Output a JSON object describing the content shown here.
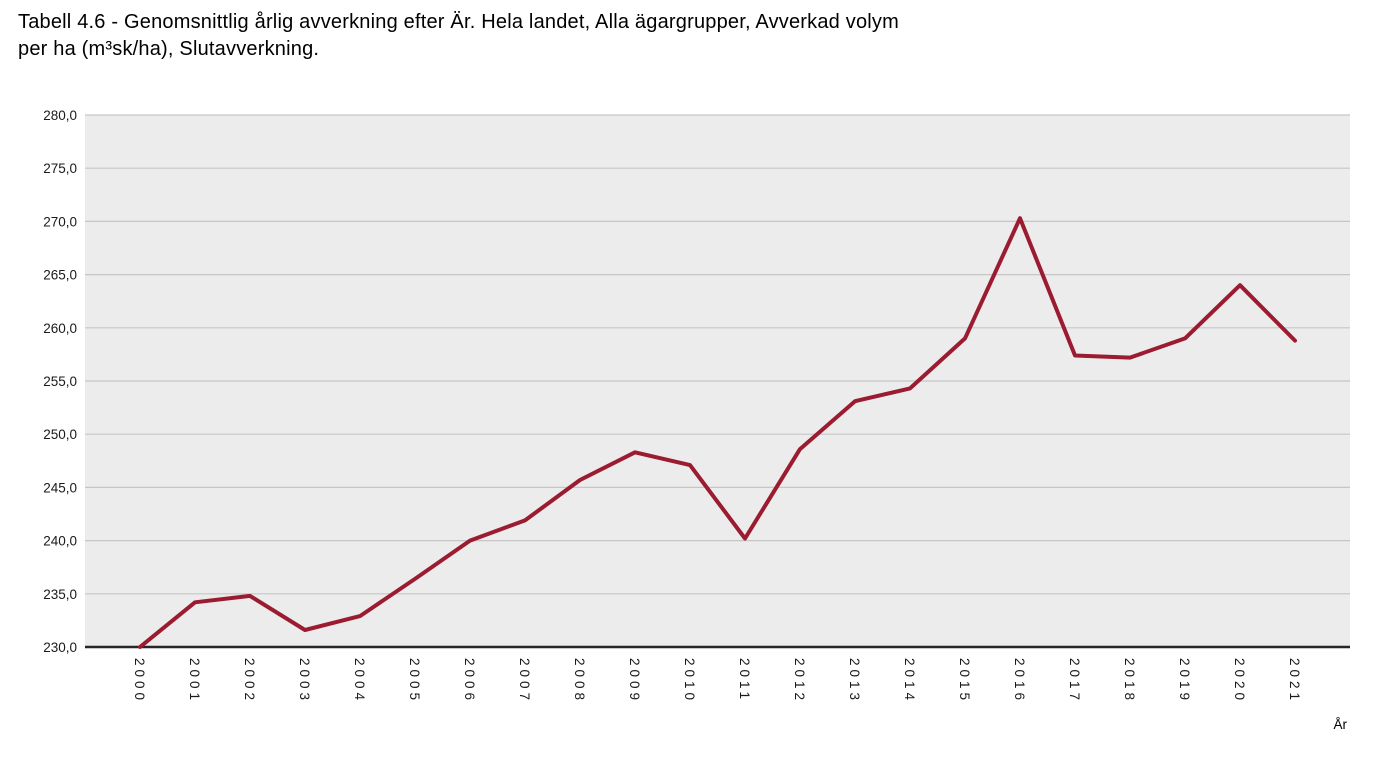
{
  "title": {
    "text": "Tabell 4.6 - Genomsnittlig årlig avverkning efter Är. Hela landet, Alla ägargrupper, Avverkad volym per ha (m³sk/ha), Slutavverkning.",
    "lines": [
      "Tabell 4.6 - Genomsnittlig årlig avverkning efter Är. Hela landet, Alla ägargrupper, Avverkad volym",
      "per ha (m³sk/ha), Slutavverkning."
    ]
  },
  "chart_data": {
    "type": "line",
    "title": "Tabell 4.6 - Genomsnittlig årlig avverkning efter Är. Hela landet, Alla ägargrupper, Avverkad volym per ha (m³sk/ha), Slutavverkning.",
    "x": [
      2000,
      2001,
      2002,
      2003,
      2004,
      2005,
      2006,
      2007,
      2008,
      2009,
      2010,
      2011,
      2012,
      2013,
      2014,
      2015,
      2016,
      2017,
      2018,
      2019,
      2020,
      2021
    ],
    "series": [
      {
        "name": "Avverkad volym per ha (m³sk/ha), Slutavverkning",
        "values": [
          230.0,
          234.2,
          234.8,
          231.6,
          232.9,
          236.4,
          240.0,
          241.9,
          245.7,
          248.3,
          247.1,
          240.2,
          248.6,
          253.1,
          254.3,
          259.0,
          270.3,
          257.4,
          257.2,
          259.0,
          264.0,
          258.8
        ]
      }
    ],
    "xlabel": "År",
    "ylabel": "",
    "ylim": [
      230,
      280
    ],
    "ytick_step": 5,
    "ytick_labels": [
      "230,0",
      "235,0",
      "240,0",
      "245,0",
      "250,0",
      "255,0",
      "260,0",
      "265,0",
      "270,0",
      "275,0",
      "280,0"
    ],
    "decimal_separator": ",",
    "grid": true,
    "legend_position": "none",
    "colors": {
      "line": "#9b1b30",
      "plot_background": "#ececec",
      "gridline": "#c6c6c6",
      "axis_line": "#262626",
      "tick_text": "#1a1a1a"
    }
  }
}
